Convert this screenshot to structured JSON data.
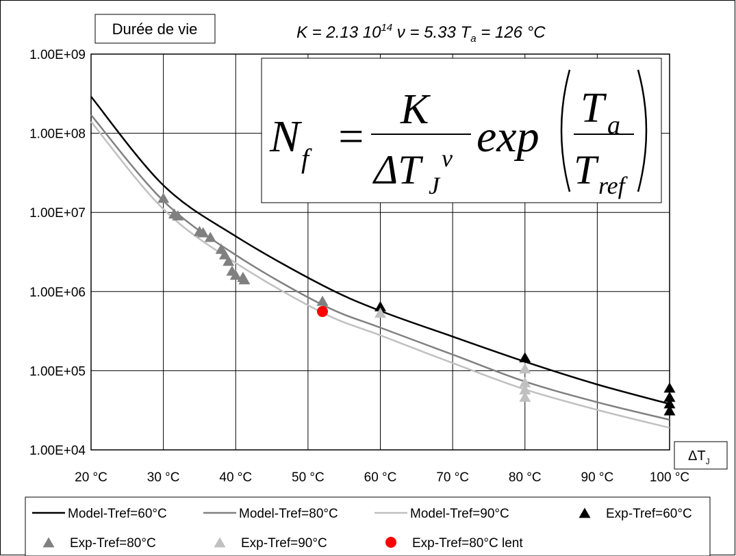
{
  "chart_data": {
    "type": "line",
    "ylabel": "Durée de vie",
    "xlabel": "ΔT",
    "xlabel_sub": "J",
    "y_scale": "log",
    "ylim": [
      10000,
      1000000000
    ],
    "xlim": [
      20,
      100
    ],
    "grid": true,
    "legend_position": "bottom",
    "y_tick_labels": [
      "1.00E+09",
      "1.00E+08",
      "1.00E+07",
      "1.00E+06",
      "1.00E+05",
      "1.00E+04"
    ],
    "y_tick_values": [
      1000000000,
      100000000,
      10000000,
      1000000,
      100000,
      10000
    ],
    "x_tick_labels": [
      "20 °C",
      "30 °C",
      "40 °C",
      "50 °C",
      "60 °C",
      "70 °C",
      "80 °C",
      "90 °C",
      "100 °C"
    ],
    "x_tick_values": [
      20,
      30,
      40,
      50,
      60,
      70,
      80,
      90,
      100
    ],
    "parameters": {
      "k_text": "K = 2.13 10",
      "k_exp": "14",
      "nu_text": " ν = 5.33 T",
      "ta_sub": "a",
      "ta_text": " = 126 °C"
    },
    "formula": {
      "lhs": "N",
      "lhs_sub": "f",
      "equals": "=",
      "numerator": "K",
      "denominator": "ΔT",
      "denominator_sub": "J",
      "denominator_exp": "v",
      "function": "exp",
      "inner_numerator": "T",
      "inner_numerator_sub": "a",
      "inner_denominator": "T",
      "inner_denominator_sub": "ref"
    },
    "series": [
      {
        "name": "Model-Tref=60°C",
        "kind": "line",
        "color": "#000000",
        "x": [
          20,
          30,
          40,
          52,
          60,
          70,
          80,
          90,
          100
        ],
        "y": [
          290000000,
          22000000,
          5000000,
          1200000,
          570000,
          270000,
          130000,
          67000,
          38000
        ]
      },
      {
        "name": "Model-Tref=80°C",
        "kind": "line",
        "color": "#808080",
        "x": [
          20,
          30,
          40,
          52,
          60,
          70,
          80,
          90,
          100
        ],
        "y": [
          170000000,
          14000000,
          2900000,
          680000,
          350000,
          160000,
          73000,
          40000,
          24000
        ]
      },
      {
        "name": "Model-Tref=90°C",
        "kind": "line",
        "color": "#c0c0c0",
        "x": [
          20,
          30,
          40,
          52,
          60,
          70,
          80,
          90,
          100
        ],
        "y": [
          140000000,
          11000000,
          2300000,
          540000,
          280000,
          125000,
          58000,
          32000,
          19000
        ]
      },
      {
        "name": "Exp-Tref=60°C",
        "kind": "triangle",
        "color": "#000000",
        "x": [
          60,
          80,
          100,
          100,
          100,
          100
        ],
        "y": [
          640000,
          145000,
          60000,
          46000,
          38000,
          31000
        ]
      },
      {
        "name": "Exp-Tref=80°C",
        "kind": "triangle",
        "color": "#808080",
        "x": [
          30,
          31.5,
          32,
          35,
          35.5,
          36.5,
          38,
          38.5,
          39,
          39.5,
          40,
          41,
          41.2,
          52
        ],
        "y": [
          15000000,
          9500000,
          9000000,
          5700000,
          5500000,
          4800000,
          3400000,
          2900000,
          2400000,
          1800000,
          1600000,
          1500000,
          1400000,
          750000
        ]
      },
      {
        "name": "Exp-Tref=90°C",
        "kind": "triangle",
        "color": "#c0c0c0",
        "x": [
          60,
          80,
          80,
          80,
          80
        ],
        "y": [
          530000,
          105000,
          70000,
          57000,
          46000
        ]
      },
      {
        "name": "Exp-Tref=80°C lent",
        "kind": "circle",
        "color": "#ff0000",
        "x": [
          52
        ],
        "y": [
          560000
        ]
      }
    ]
  }
}
